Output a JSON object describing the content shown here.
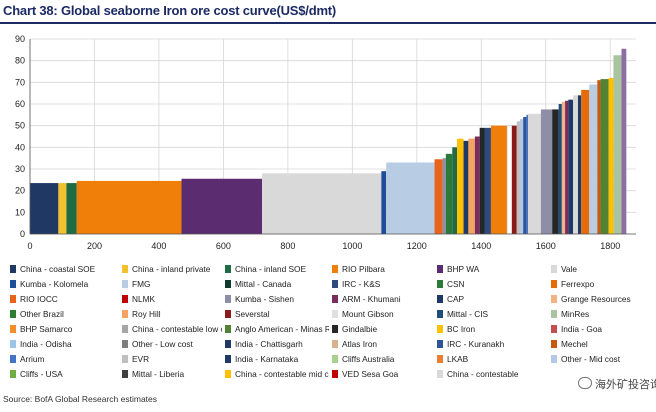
{
  "header": {
    "title": "Chart 38: Global seaborne Iron ore cost curve(US$/dmt)"
  },
  "source": "Source: BofA Global Research estimates",
  "watermark": {
    "text": "海外矿投咨询"
  },
  "chart_data": {
    "type": "bar",
    "title": "Chart 38: Global seaborne Iron ore cost curve(US$/dmt)",
    "xlabel": "",
    "ylabel": "",
    "xlim": [
      0,
      1880
    ],
    "ylim": [
      0,
      90
    ],
    "x_ticks": [
      "0",
      "200",
      "400",
      "600",
      "800",
      "1000",
      "1200",
      "1400",
      "1600",
      "1800"
    ],
    "y_ticks": [
      "0",
      "10",
      "20",
      "30",
      "40",
      "50",
      "60",
      "70",
      "80",
      "90"
    ],
    "grid": true,
    "legend_position": "bottom",
    "legend": [
      {
        "label": "China - coastal SOE",
        "color": "#1f3864"
      },
      {
        "label": "China - inland private",
        "color": "#f2c12e"
      },
      {
        "label": "China - inland SOE",
        "color": "#1e6b45"
      },
      {
        "label": "RIO Pilbara",
        "color": "#f07f09"
      },
      {
        "label": "BHP WA",
        "color": "#5b2c6f"
      },
      {
        "label": "Vale",
        "color": "#d9d9d9"
      },
      {
        "label": "Kumba - Kolomela",
        "color": "#1f4e99"
      },
      {
        "label": "FMG",
        "color": "#b8cce4"
      },
      {
        "label": "Mittal - Canada",
        "color": "#0e3b2e"
      },
      {
        "label": "IRC - K&S",
        "color": "#2e4a7d"
      },
      {
        "label": "CSN",
        "color": "#2b7a3a"
      },
      {
        "label": "Ferrexpo",
        "color": "#e46c0a"
      },
      {
        "label": "RIO IOCC",
        "color": "#e8641b"
      },
      {
        "label": "NLMK",
        "color": "#c00000"
      },
      {
        "label": "Kumba - Sishen",
        "color": "#8e8ea8"
      },
      {
        "label": "ARM - Khumani",
        "color": "#7b2c5e"
      },
      {
        "label": "CAP",
        "color": "#1f3864"
      },
      {
        "label": "Grange Resources",
        "color": "#f4b183"
      },
      {
        "label": "Other Brazil",
        "color": "#2e7d32"
      },
      {
        "label": "Roy Hill",
        "color": "#f4a460"
      },
      {
        "label": "Severstal",
        "color": "#8b1a1a"
      },
      {
        "label": "Mount Gibson",
        "color": "#e0e0e0"
      },
      {
        "label": "Mittal - CIS",
        "color": "#1f4e79"
      },
      {
        "label": "MinRes",
        "color": "#a9c4a0"
      },
      {
        "label": "BHP Samarco",
        "color": "#f28e2b"
      },
      {
        "label": "China - contestable low cost",
        "color": "#a6a6a6"
      },
      {
        "label": "Anglo American - Minas Rio",
        "color": "#548235"
      },
      {
        "label": "Gindalbie",
        "color": "#262626"
      },
      {
        "label": "BC Iron",
        "color": "#ffc000"
      },
      {
        "label": "India - Goa",
        "color": "#c0504d"
      },
      {
        "label": "India - Odisha",
        "color": "#9dc3e6"
      },
      {
        "label": "Other - Low cost",
        "color": "#7f7f7f"
      },
      {
        "label": "India - Chattisgarh",
        "color": "#203864"
      },
      {
        "label": "Atlas Iron",
        "color": "#d9b38c"
      },
      {
        "label": "IRC - Kuranakh",
        "color": "#2f5597"
      },
      {
        "label": "Mechel",
        "color": "#c55a11"
      },
      {
        "label": "Arrium",
        "color": "#4472c4"
      },
      {
        "label": "EVR",
        "color": "#bfbfbf"
      },
      {
        "label": "India - Karnataka",
        "color": "#1f3864"
      },
      {
        "label": "Cliffs Australia",
        "color": "#a9d18e"
      },
      {
        "label": "LKAB",
        "color": "#ed7d31"
      },
      {
        "label": "Other - Mid cost",
        "color": "#b4c7e7"
      },
      {
        "label": "Cliffs - USA",
        "color": "#70ad47"
      },
      {
        "label": "Mittal - Liberia",
        "color": "#404040"
      },
      {
        "label": "China - contestable mid cost",
        "color": "#ffc000"
      },
      {
        "label": "VED Sesa Goa",
        "color": "#c00000"
      },
      {
        "label": "China - contestable",
        "color": "#d9d9d9"
      }
    ],
    "segments": [
      {
        "start": 0,
        "end": 88,
        "value": 23.5,
        "color": "#1f3864"
      },
      {
        "start": 88,
        "end": 113,
        "value": 23.5,
        "color": "#f2c12e"
      },
      {
        "start": 113,
        "end": 145,
        "value": 23.5,
        "color": "#1e6b45"
      },
      {
        "start": 145,
        "end": 470,
        "value": 24.5,
        "color": "#f07f09"
      },
      {
        "start": 470,
        "end": 720,
        "value": 25.5,
        "color": "#5b2c6f"
      },
      {
        "start": 720,
        "end": 1090,
        "value": 28,
        "color": "#d9d9d9"
      },
      {
        "start": 1090,
        "end": 1105,
        "value": 29,
        "color": "#1f4e99"
      },
      {
        "start": 1105,
        "end": 1255,
        "value": 33,
        "color": "#b8cce4"
      },
      {
        "start": 1255,
        "end": 1280,
        "value": 34.5,
        "color": "#e8641b"
      },
      {
        "start": 1280,
        "end": 1290,
        "value": 35,
        "color": "#8e8ea8"
      },
      {
        "start": 1290,
        "end": 1310,
        "value": 37,
        "color": "#2b7a3a"
      },
      {
        "start": 1310,
        "end": 1325,
        "value": 40,
        "color": "#1e6b45"
      },
      {
        "start": 1325,
        "end": 1345,
        "value": 44,
        "color": "#ffc000"
      },
      {
        "start": 1345,
        "end": 1360,
        "value": 43,
        "color": "#1f3864"
      },
      {
        "start": 1360,
        "end": 1380,
        "value": 44,
        "color": "#f4a460"
      },
      {
        "start": 1380,
        "end": 1395,
        "value": 45,
        "color": "#7b2c5e"
      },
      {
        "start": 1395,
        "end": 1410,
        "value": 49,
        "color": "#262626"
      },
      {
        "start": 1410,
        "end": 1430,
        "value": 49,
        "color": "#2e4a7d"
      },
      {
        "start": 1430,
        "end": 1480,
        "value": 50,
        "color": "#f07f09"
      },
      {
        "start": 1480,
        "end": 1495,
        "value": 50,
        "color": "#ffffff"
      },
      {
        "start": 1495,
        "end": 1510,
        "value": 50,
        "color": "#8b1a1a"
      },
      {
        "start": 1510,
        "end": 1520,
        "value": 52,
        "color": "#bfbfbf"
      },
      {
        "start": 1520,
        "end": 1530,
        "value": 53,
        "color": "#b4c7e7"
      },
      {
        "start": 1530,
        "end": 1540,
        "value": 54,
        "color": "#2f5597"
      },
      {
        "start": 1540,
        "end": 1545,
        "value": 55,
        "color": "#4472c4"
      },
      {
        "start": 1545,
        "end": 1585,
        "value": 55.5,
        "color": "#d9d9d9"
      },
      {
        "start": 1585,
        "end": 1620,
        "value": 57.5,
        "color": "#8e8ea8"
      },
      {
        "start": 1620,
        "end": 1640,
        "value": 57.5,
        "color": "#262626"
      },
      {
        "start": 1640,
        "end": 1650,
        "value": 60,
        "color": "#1f4e79"
      },
      {
        "start": 1650,
        "end": 1660,
        "value": 61,
        "color": "#f4b183"
      },
      {
        "start": 1660,
        "end": 1670,
        "value": 61.5,
        "color": "#7b2c5e"
      },
      {
        "start": 1670,
        "end": 1685,
        "value": 62,
        "color": "#1f3864"
      },
      {
        "start": 1685,
        "end": 1700,
        "value": 64,
        "color": "#d9d9d9"
      },
      {
        "start": 1700,
        "end": 1710,
        "value": 64,
        "color": "#1f3864"
      },
      {
        "start": 1710,
        "end": 1735,
        "value": 66.5,
        "color": "#e46c0a"
      },
      {
        "start": 1735,
        "end": 1760,
        "value": 69,
        "color": "#b8cce4"
      },
      {
        "start": 1760,
        "end": 1770,
        "value": 71,
        "color": "#c55a11"
      },
      {
        "start": 1770,
        "end": 1795,
        "value": 71.5,
        "color": "#548235"
      },
      {
        "start": 1795,
        "end": 1810,
        "value": 72,
        "color": "#ffc000"
      },
      {
        "start": 1810,
        "end": 1835,
        "value": 82.5,
        "color": "#a9c4a0"
      },
      {
        "start": 1835,
        "end": 1850,
        "value": 85.5,
        "color": "#8e6fa5"
      }
    ]
  }
}
